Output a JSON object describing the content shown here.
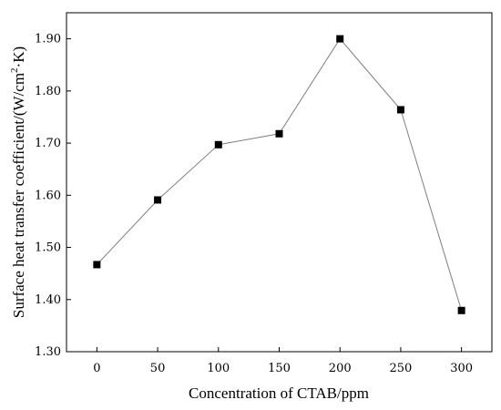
{
  "chart_data": {
    "type": "line",
    "x": [
      0,
      50,
      100,
      150,
      200,
      250,
      300
    ],
    "y": [
      1.467,
      1.591,
      1.697,
      1.718,
      1.9,
      1.764,
      1.379
    ],
    "xlabel": "Concentration of  CTAB/ppm",
    "ylabel_parts": [
      "Surface heat transfer coefficient/(W/cm",
      "2",
      "·K)"
    ],
    "xlim": [
      -25,
      325
    ],
    "ylim": [
      1.3,
      1.95
    ],
    "xticks": [
      0,
      50,
      100,
      150,
      200,
      250,
      300
    ],
    "xtick_labels": [
      "0",
      "50",
      "100",
      "150",
      "200",
      "250",
      "300"
    ],
    "yticks": [
      1.3,
      1.4,
      1.5,
      1.6,
      1.7,
      1.8,
      1.9
    ],
    "ytick_labels": [
      "1.30",
      "1.40",
      "1.50",
      "1.60",
      "1.70",
      "1.80",
      "1.90"
    ],
    "grid": false,
    "marker": "square",
    "line_color": "#7f7f7f",
    "marker_color": "#000000"
  }
}
